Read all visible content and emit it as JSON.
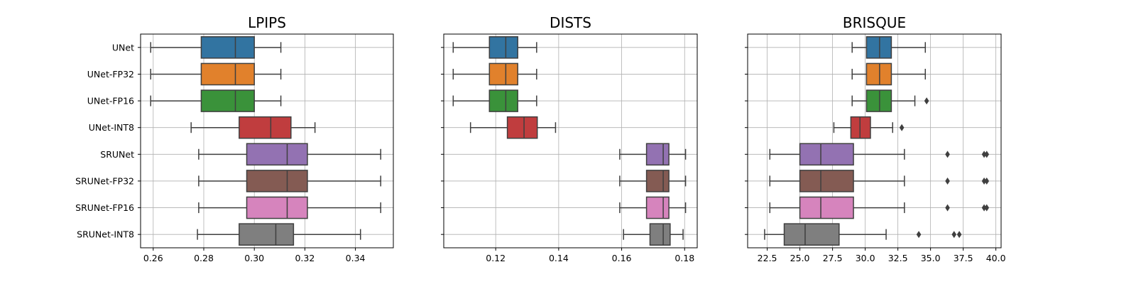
{
  "categories": [
    "UNet",
    "UNet-FP32",
    "UNet-FP16",
    "UNet-INT8",
    "SRUNet",
    "SRUNet-FP32",
    "SRUNet-FP16",
    "SRUNet-INT8"
  ],
  "palette": [
    "#3274a1",
    "#e1812c",
    "#3a923a",
    "#c03d3e",
    "#9372b2",
    "#845b53",
    "#d684bd",
    "#7f7f7f"
  ],
  "chart_data": [
    {
      "type": "box",
      "title": "LPIPS",
      "orientation": "horizontal",
      "categories": [
        "UNet",
        "UNet-FP32",
        "UNet-FP16",
        "UNet-INT8",
        "SRUNet",
        "SRUNet-FP32",
        "SRUNet-FP16",
        "SRUNet-INT8"
      ],
      "xlim": [
        0.255,
        0.355
      ],
      "xticks": [
        0.26,
        0.28,
        0.3,
        0.32,
        0.34
      ],
      "xtick_labels": [
        "0.26",
        "0.28",
        "0.30",
        "0.32",
        "0.34"
      ],
      "grid": true,
      "boxes": [
        {
          "whisker_low": 0.259,
          "q1": 0.279,
          "median": 0.2925,
          "q3": 0.3,
          "whisker_high": 0.3105,
          "outliers": []
        },
        {
          "whisker_low": 0.259,
          "q1": 0.279,
          "median": 0.2925,
          "q3": 0.3,
          "whisker_high": 0.3105,
          "outliers": []
        },
        {
          "whisker_low": 0.259,
          "q1": 0.279,
          "median": 0.2925,
          "q3": 0.3,
          "whisker_high": 0.3105,
          "outliers": []
        },
        {
          "whisker_low": 0.275,
          "q1": 0.294,
          "median": 0.3065,
          "q3": 0.3145,
          "whisker_high": 0.324,
          "outliers": []
        },
        {
          "whisker_low": 0.278,
          "q1": 0.297,
          "median": 0.313,
          "q3": 0.321,
          "whisker_high": 0.35,
          "outliers": []
        },
        {
          "whisker_low": 0.278,
          "q1": 0.297,
          "median": 0.313,
          "q3": 0.321,
          "whisker_high": 0.35,
          "outliers": []
        },
        {
          "whisker_low": 0.278,
          "q1": 0.297,
          "median": 0.313,
          "q3": 0.321,
          "whisker_high": 0.35,
          "outliers": []
        },
        {
          "whisker_low": 0.2775,
          "q1": 0.294,
          "median": 0.3085,
          "q3": 0.3155,
          "whisker_high": 0.342,
          "outliers": []
        }
      ]
    },
    {
      "type": "box",
      "title": "DISTS",
      "orientation": "horizontal",
      "categories": [
        "UNet",
        "UNet-FP32",
        "UNet-FP16",
        "UNet-INT8",
        "SRUNet",
        "SRUNet-FP32",
        "SRUNet-FP16",
        "SRUNet-INT8"
      ],
      "xlim": [
        0.1035,
        0.184
      ],
      "xticks": [
        0.12,
        0.14,
        0.16,
        0.18
      ],
      "xtick_labels": [
        "0.12",
        "0.14",
        "0.16",
        "0.18"
      ],
      "grid": true,
      "boxes": [
        {
          "whisker_low": 0.1065,
          "q1": 0.118,
          "median": 0.1232,
          "q3": 0.127,
          "whisker_high": 0.133,
          "outliers": []
        },
        {
          "whisker_low": 0.1065,
          "q1": 0.118,
          "median": 0.1232,
          "q3": 0.127,
          "whisker_high": 0.133,
          "outliers": []
        },
        {
          "whisker_low": 0.1065,
          "q1": 0.118,
          "median": 0.1232,
          "q3": 0.127,
          "whisker_high": 0.133,
          "outliers": []
        },
        {
          "whisker_low": 0.112,
          "q1": 0.1237,
          "median": 0.129,
          "q3": 0.1332,
          "whisker_high": 0.139,
          "outliers": []
        },
        {
          "whisker_low": 0.1594,
          "q1": 0.1679,
          "median": 0.1732,
          "q3": 0.175,
          "whisker_high": 0.1803,
          "outliers": []
        },
        {
          "whisker_low": 0.1594,
          "q1": 0.1679,
          "median": 0.1732,
          "q3": 0.175,
          "whisker_high": 0.1803,
          "outliers": []
        },
        {
          "whisker_low": 0.1594,
          "q1": 0.1679,
          "median": 0.1732,
          "q3": 0.175,
          "whisker_high": 0.1803,
          "outliers": []
        },
        {
          "whisker_low": 0.1606,
          "q1": 0.169,
          "median": 0.1732,
          "q3": 0.1754,
          "whisker_high": 0.1795,
          "outliers": []
        }
      ]
    },
    {
      "type": "box",
      "title": "BRISQUE",
      "orientation": "horizontal",
      "categories": [
        "UNet",
        "UNet-FP32",
        "UNet-FP16",
        "UNet-INT8",
        "SRUNet",
        "SRUNet-FP32",
        "SRUNet-FP16",
        "SRUNet-INT8"
      ],
      "xlim": [
        21.0,
        40.4
      ],
      "xticks": [
        22.5,
        25.0,
        27.5,
        30.0,
        32.5,
        35.0,
        37.5,
        40.0
      ],
      "xtick_labels": [
        "22.5",
        "25.0",
        "27.5",
        "30.0",
        "32.5",
        "35.0",
        "37.5",
        "40.0"
      ],
      "grid": true,
      "boxes": [
        {
          "whisker_low": 29.0,
          "q1": 30.1,
          "median": 31.1,
          "q3": 32.0,
          "whisker_high": 34.6,
          "outliers": []
        },
        {
          "whisker_low": 29.0,
          "q1": 30.1,
          "median": 31.1,
          "q3": 32.0,
          "whisker_high": 34.6,
          "outliers": []
        },
        {
          "whisker_low": 29.0,
          "q1": 30.1,
          "median": 31.1,
          "q3": 32.0,
          "whisker_high": 33.8,
          "outliers": [
            34.7
          ]
        },
        {
          "whisker_low": 27.6,
          "q1": 28.9,
          "median": 29.6,
          "q3": 30.4,
          "whisker_high": 32.1,
          "outliers": [
            32.8
          ]
        },
        {
          "whisker_low": 22.7,
          "q1": 25.0,
          "median": 26.6,
          "q3": 29.1,
          "whisker_high": 33.0,
          "outliers": [
            36.3,
            39.1,
            39.3
          ]
        },
        {
          "whisker_low": 22.7,
          "q1": 25.0,
          "median": 26.6,
          "q3": 29.1,
          "whisker_high": 33.0,
          "outliers": [
            36.3,
            39.1,
            39.3
          ]
        },
        {
          "whisker_low": 22.7,
          "q1": 25.0,
          "median": 26.6,
          "q3": 29.1,
          "whisker_high": 33.0,
          "outliers": [
            36.3,
            39.1,
            39.3
          ]
        },
        {
          "whisker_low": 22.3,
          "q1": 23.8,
          "median": 25.4,
          "q3": 28.0,
          "whisker_high": 31.6,
          "outliers": [
            34.1,
            36.8,
            37.2
          ]
        }
      ]
    }
  ]
}
